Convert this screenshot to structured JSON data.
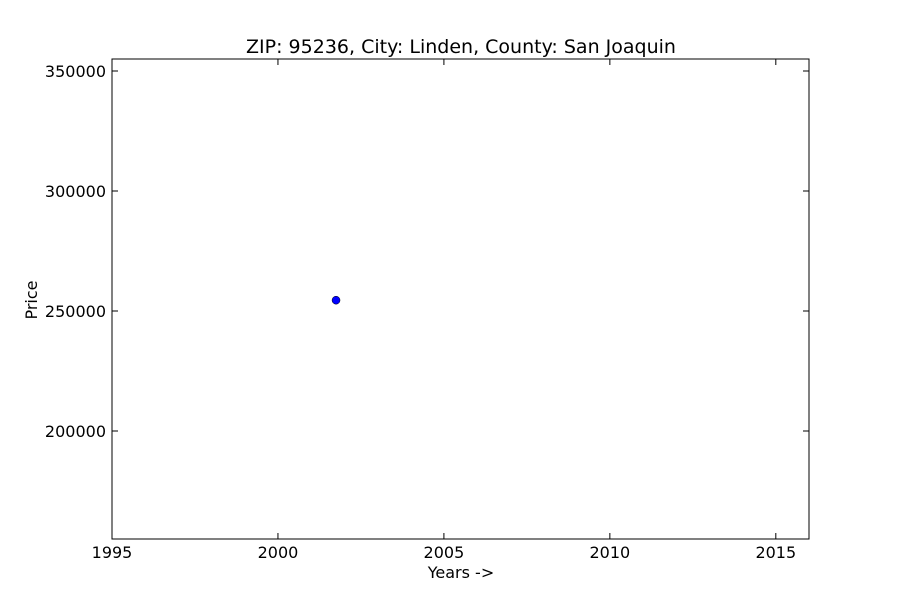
{
  "chart_data": {
    "type": "scatter",
    "title": "ZIP: 95236, City: Linden, County: San Joaquin",
    "xlabel": "Years ->",
    "ylabel": "Price",
    "xlim": [
      1995,
      2016
    ],
    "ylim": [
      155000,
      355000
    ],
    "xticks": [
      1995,
      2000,
      2005,
      2010,
      2015
    ],
    "yticks": [
      200000,
      250000,
      300000,
      350000
    ],
    "grid": false,
    "series": [
      {
        "color": "#0000ff",
        "points": [
          {
            "x": 2001.75,
            "y": 254500
          }
        ]
      }
    ]
  }
}
